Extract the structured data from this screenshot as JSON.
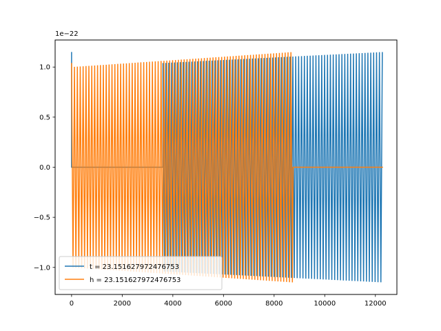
{
  "chart_data": {
    "type": "line",
    "title": "",
    "xlabel": "",
    "ylabel": "",
    "y_offset_label": "1e−22",
    "xlim": [
      -650,
      12850
    ],
    "ylim": [
      -1.27,
      1.27
    ],
    "xticks": [
      0,
      2000,
      4000,
      6000,
      8000,
      10000,
      12000
    ],
    "xtick_labels": [
      "0",
      "2000",
      "4000",
      "6000",
      "8000",
      "10000",
      "12000"
    ],
    "yticks": [
      -1.0,
      -0.5,
      0.0,
      0.5,
      1.0
    ],
    "ytick_labels": [
      "−1.0",
      "−0.5",
      "0.0",
      "0.5",
      "1.0"
    ],
    "grid": false,
    "legend_position": "lower left",
    "series": [
      {
        "name": "t = 23.151627972476753",
        "color": "#1f77b4",
        "segments": [
          {
            "x_start": 0,
            "x_end": 3610,
            "kind": "flat",
            "value": 0.0
          },
          {
            "x_start": 3610,
            "x_end": 12300,
            "kind": "oscillation",
            "amp_start": 1.04,
            "amp_end": 1.15,
            "period": 114
          }
        ],
        "initial_spike": {
          "x": 0,
          "value": 1.15
        }
      },
      {
        "name": "h = 23.151627972476753",
        "color": "#ff7f0e",
        "segments": [
          {
            "x_start": 0,
            "x_end": 8750,
            "kind": "oscillation",
            "amp_start": 1.0,
            "amp_end": 1.15,
            "period": 114
          },
          {
            "x_start": 8750,
            "x_end": 12300,
            "kind": "flat",
            "value": 0.0
          }
        ],
        "initial_spike": {
          "x": 0,
          "value": 1.04
        }
      }
    ]
  }
}
